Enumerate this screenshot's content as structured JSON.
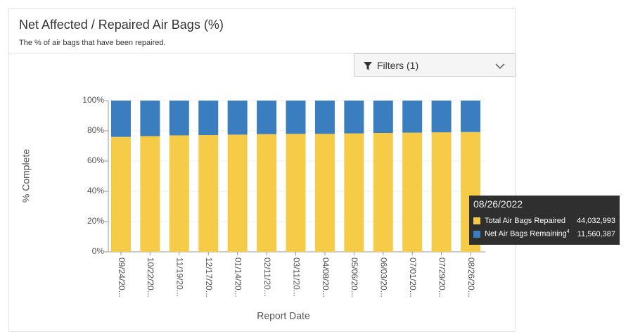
{
  "chart_data": {
    "type": "stacked_bar",
    "title": "Net Affected / Repaired Air Bags (%)",
    "subtitle": "The % of air bags that have been repaired.",
    "filter_button": "Filters (1)",
    "y_axis_label": "% Complete",
    "x_axis_label": "Report Date",
    "categories": [
      "09/24/20...",
      "10/22/20...",
      "11/19/20...",
      "12/17/20...",
      "01/14/20...",
      "02/11/20...",
      "03/11/20...",
      "04/08/20...",
      "05/06/20...",
      "06/03/20...",
      "07/01/20...",
      "07/29/20...",
      "08/26/20..."
    ],
    "series": [
      {
        "name": "Total Air Bags Repaired",
        "color": "#f5cb47",
        "values": [
          76,
          76.5,
          77,
          77.2,
          77.5,
          77.8,
          78,
          78,
          78.3,
          78.6,
          78.8,
          79,
          79.2
        ]
      },
      {
        "name": "Net Air Bags Remaining",
        "color": "#3a7ebf",
        "values": [
          24,
          23.5,
          23,
          22.8,
          22.5,
          22.2,
          22,
          22,
          21.7,
          21.4,
          21.2,
          21,
          20.8
        ]
      }
    ],
    "ylim": [
      0,
      100
    ],
    "yticks": [
      {
        "value": 0,
        "label": "0%"
      },
      {
        "value": 20,
        "label": "20%"
      },
      {
        "value": 40,
        "label": "40%"
      },
      {
        "value": 60,
        "label": "60%"
      },
      {
        "value": 80,
        "label": "80%"
      },
      {
        "value": 100,
        "label": "100%"
      }
    ],
    "grid": true,
    "tooltip": {
      "title": "08/26/2022",
      "footnote_marker": "4",
      "values": [
        "44,032,993",
        "11,560,387"
      ]
    }
  }
}
